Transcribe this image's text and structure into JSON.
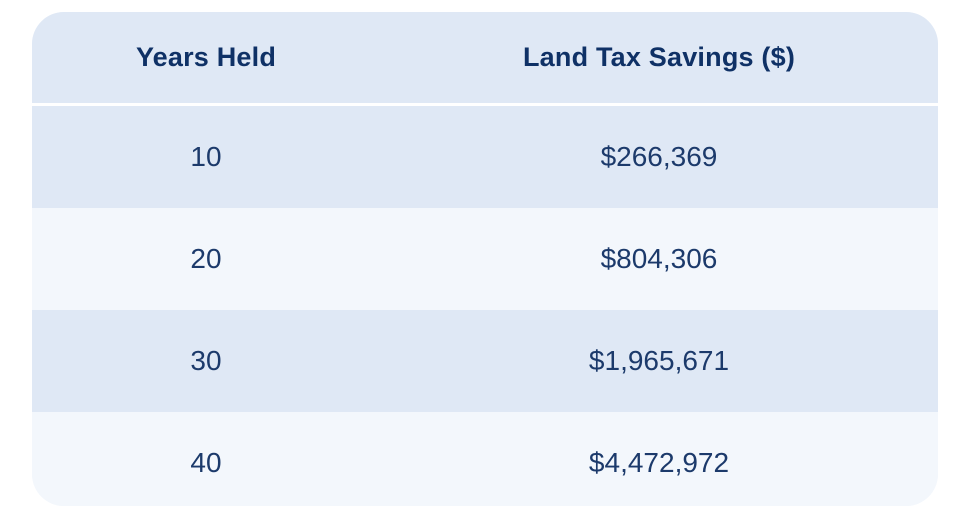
{
  "chart_data": {
    "type": "table",
    "columns": [
      "Years Held",
      "Land Tax Savings ($)"
    ],
    "rows": [
      {
        "years": "10",
        "savings": "$266,369"
      },
      {
        "years": "20",
        "savings": "$804,306"
      },
      {
        "years": "30",
        "savings": "$1,965,671"
      },
      {
        "years": "40",
        "savings": "$4,472,972"
      }
    ]
  },
  "colors": {
    "header_bg": "#dfe8f5",
    "row_shade": "#dfe8f5",
    "row_light": "#f3f7fc",
    "text": "#0f3166"
  }
}
